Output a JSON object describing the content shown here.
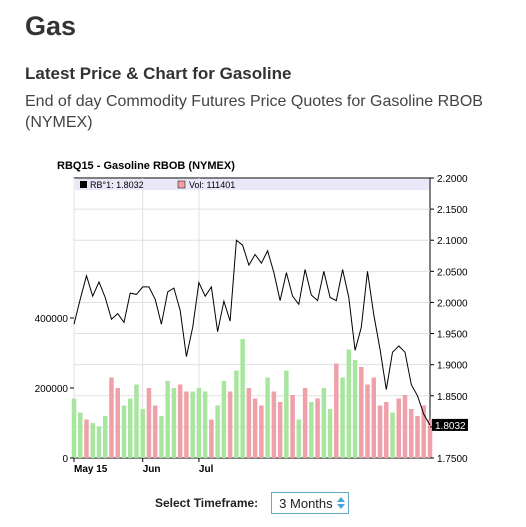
{
  "page": {
    "title": "Gas",
    "subtitle": "Latest Price & Chart for Gasoline",
    "description": "End of day Commodity Futures Price Quotes for Gasoline RBOB (NYMEX)"
  },
  "timeframe": {
    "label": "Select Timeframe:",
    "selected": "3 Months"
  },
  "colors": {
    "price_line": "#000000",
    "vol_up": "#a8e6a0",
    "vol_down": "#f0a0a8",
    "legend_bg": "#e8e8f8",
    "grid": "#e0e0e0",
    "select_border": "#66a8c8"
  },
  "icons": {
    "price_legend": "black-square-icon",
    "vol_legend": "pink-square-icon",
    "select_arrows": "up-down-arrows-icon"
  },
  "chart_data": {
    "type": "line",
    "title": "RBQ15 - Gasoline RBOB (NYMEX)",
    "legend": {
      "price": "RB°1: 1.8032",
      "volume": "Vol: 111401",
      "placement": "top-left"
    },
    "x_ticks": [
      {
        "label": "May 15",
        "index": 0
      },
      {
        "label": "Jun",
        "index": 11
      },
      {
        "label": "Jul",
        "index": 20
      }
    ],
    "price": {
      "values": [
        1.965,
        2.005,
        2.043,
        2.01,
        2.033,
        2.008,
        1.973,
        1.982,
        1.968,
        2.015,
        2.013,
        2.025,
        2.025,
        2.005,
        1.965,
        2.017,
        2.023,
        1.987,
        1.913,
        1.96,
        2.032,
        2.01,
        2.025,
        1.953,
        2.002,
        1.97,
        2.1,
        2.092,
        2.06,
        2.077,
        2.063,
        2.083,
        2.048,
        2.003,
        2.048,
        2.01,
        1.997,
        2.053,
        2.012,
        2.003,
        2.05,
        2.008,
        2.003,
        2.053,
        2.008,
        1.923,
        1.96,
        2.05,
        1.98,
        1.925,
        1.86,
        1.92,
        1.93,
        1.92,
        1.868,
        1.85,
        1.82,
        1.803
      ],
      "ylim": [
        1.75,
        2.2
      ],
      "ticks": [
        "1.7500",
        "1.8000",
        "1.8500",
        "1.9000",
        "1.9500",
        "2.0000",
        "2.0500",
        "2.1000",
        "2.1500",
        "2.2000"
      ],
      "last_label": "1.8032",
      "last_value": 1.8032
    },
    "volume": {
      "ylim": [
        0,
        800000
      ],
      "ticks": [
        {
          "label": "0",
          "value": 0
        },
        {
          "label": "200000",
          "value": 200000
        },
        {
          "label": "400000",
          "value": 400000
        }
      ],
      "bars": [
        {
          "v": 170000,
          "up": true
        },
        {
          "v": 130000,
          "up": true
        },
        {
          "v": 110000,
          "up": false
        },
        {
          "v": 100000,
          "up": true
        },
        {
          "v": 90000,
          "up": true
        },
        {
          "v": 120000,
          "up": true
        },
        {
          "v": 230000,
          "up": false
        },
        {
          "v": 200000,
          "up": false
        },
        {
          "v": 150000,
          "up": true
        },
        {
          "v": 170000,
          "up": true
        },
        {
          "v": 210000,
          "up": true
        },
        {
          "v": 140000,
          "up": true
        },
        {
          "v": 200000,
          "up": false
        },
        {
          "v": 150000,
          "up": false
        },
        {
          "v": 120000,
          "up": true
        },
        {
          "v": 220000,
          "up": true
        },
        {
          "v": 200000,
          "up": true
        },
        {
          "v": 210000,
          "up": false
        },
        {
          "v": 190000,
          "up": false
        },
        {
          "v": 190000,
          "up": true
        },
        {
          "v": 200000,
          "up": true
        },
        {
          "v": 190000,
          "up": true
        },
        {
          "v": 110000,
          "up": false
        },
        {
          "v": 150000,
          "up": true
        },
        {
          "v": 220000,
          "up": true
        },
        {
          "v": 190000,
          "up": false
        },
        {
          "v": 250000,
          "up": true
        },
        {
          "v": 340000,
          "up": true
        },
        {
          "v": 200000,
          "up": false
        },
        {
          "v": 170000,
          "up": false
        },
        {
          "v": 150000,
          "up": false
        },
        {
          "v": 230000,
          "up": true
        },
        {
          "v": 190000,
          "up": false
        },
        {
          "v": 160000,
          "up": false
        },
        {
          "v": 250000,
          "up": true
        },
        {
          "v": 180000,
          "up": false
        },
        {
          "v": 110000,
          "up": true
        },
        {
          "v": 200000,
          "up": false
        },
        {
          "v": 160000,
          "up": true
        },
        {
          "v": 170000,
          "up": false
        },
        {
          "v": 200000,
          "up": true
        },
        {
          "v": 140000,
          "up": true
        },
        {
          "v": 270000,
          "up": false
        },
        {
          "v": 230000,
          "up": true
        },
        {
          "v": 310000,
          "up": true
        },
        {
          "v": 280000,
          "up": true
        },
        {
          "v": 260000,
          "up": false
        },
        {
          "v": 210000,
          "up": false
        },
        {
          "v": 230000,
          "up": false
        },
        {
          "v": 150000,
          "up": false
        },
        {
          "v": 160000,
          "up": false
        },
        {
          "v": 130000,
          "up": true
        },
        {
          "v": 170000,
          "up": false
        },
        {
          "v": 180000,
          "up": false
        },
        {
          "v": 140000,
          "up": false
        },
        {
          "v": 120000,
          "up": false
        },
        {
          "v": 150000,
          "up": false
        },
        {
          "v": 110000,
          "up": false
        }
      ]
    }
  }
}
